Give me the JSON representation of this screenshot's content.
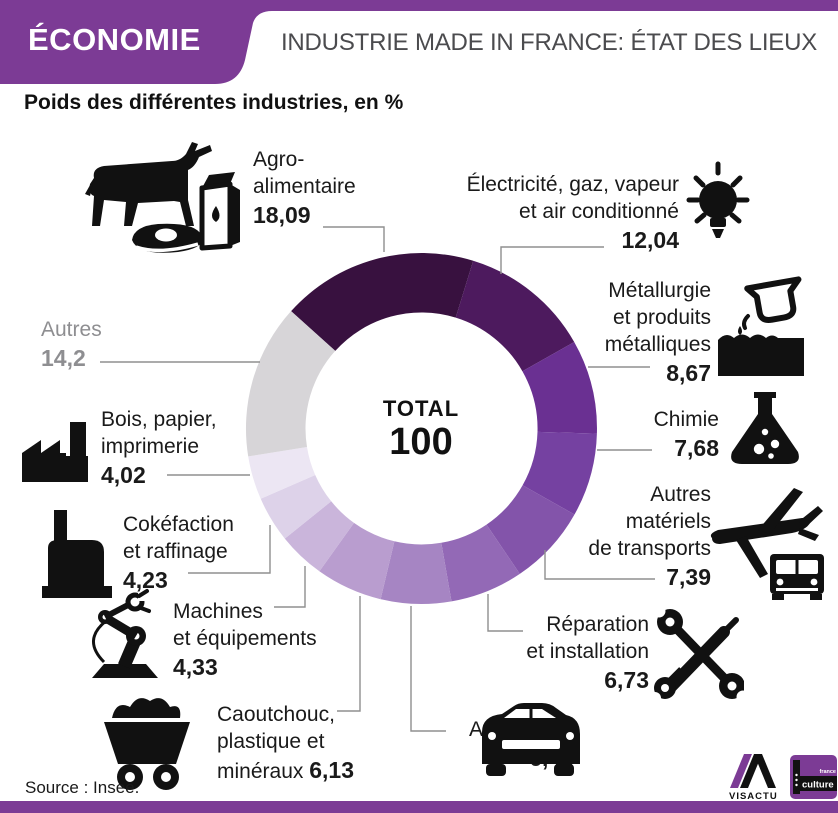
{
  "header": {
    "category": "ÉCONOMIE",
    "title": "INDUSTRIE MADE IN FRANCE: ÉTAT DES LIEUX"
  },
  "subtitle": "Poids des différentes industries, en %",
  "chart_data": {
    "type": "pie",
    "donut": true,
    "title": "Poids des différentes industries, en %",
    "units": "%",
    "total": 100,
    "center": {
      "label": "TOTAL",
      "value": "100"
    },
    "start_angle_deg": -48,
    "legend_position": "around",
    "items": [
      {
        "id": "agro-alimentaire",
        "label": "Agro-alimentaire",
        "lines": [
          "Agro-",
          "alimentaire"
        ],
        "value": 18.09,
        "value_text": "18,09",
        "color": "#38113f",
        "icon": "cow-milk-meat-icon"
      },
      {
        "id": "electricite-gaz",
        "label": "Électricité, gaz, vapeur et air conditionné",
        "lines": [
          "Électricité, gaz, vapeur",
          "et air conditionné"
        ],
        "value": 12.04,
        "value_text": "12,04",
        "color": "#4d1a5e",
        "icon": "lightbulb-icon"
      },
      {
        "id": "metallurgie",
        "label": "Métallurgie et produits métalliques",
        "lines": [
          "Métallurgie",
          "et produits",
          "métalliques"
        ],
        "value": 8.67,
        "value_text": "8,67",
        "color": "#6a3092",
        "icon": "foundry-icon"
      },
      {
        "id": "chimie",
        "label": "Chimie",
        "lines": [
          "Chimie"
        ],
        "value": 7.68,
        "value_text": "7,68",
        "color": "#7541a1",
        "icon": "flask-icon"
      },
      {
        "id": "autres-materiels-transports",
        "label": "Autres matériels de transports",
        "lines": [
          "Autres",
          "matériels",
          "de transports"
        ],
        "value": 7.39,
        "value_text": "7,39",
        "color": "#8354aa",
        "icon": "plane-truck-icon"
      },
      {
        "id": "reparation-installation",
        "label": "Réparation et installation",
        "lines": [
          "Réparation",
          "et installation"
        ],
        "value": 6.73,
        "value_text": "6,73",
        "color": "#9369b6",
        "icon": "tools-icon"
      },
      {
        "id": "automobile",
        "label": "Automobile",
        "lines": [
          "Automobile"
        ],
        "value": 6.48,
        "value_text": "6,48",
        "color": "#a685c3",
        "icon": "car-icon"
      },
      {
        "id": "caoutchouc-plastique-mineraux",
        "label": "Caoutchouc, plastique et minéraux",
        "lines": [
          "Caoutchouc,",
          "plastique et",
          "minéraux"
        ],
        "value": 6.13,
        "value_text": "6,13",
        "color": "#b99dcf",
        "icon": "minecart-icon"
      },
      {
        "id": "machines-equipements",
        "label": "Machines et équipements",
        "lines": [
          "Machines",
          "et équipements"
        ],
        "value": 4.33,
        "value_text": "4,33",
        "color": "#cab5db",
        "icon": "robot-arm-icon"
      },
      {
        "id": "cokefaction-raffinage",
        "label": "Cokéfaction et raffinage",
        "lines": [
          "Cokéfaction",
          "et raffinage"
        ],
        "value": 4.23,
        "value_text": "4,23",
        "color": "#ddd2e9",
        "icon": "refinery-icon"
      },
      {
        "id": "bois-papier-imprimerie",
        "label": "Bois, papier, imprimerie",
        "lines": [
          "Bois, papier,",
          "imprimerie"
        ],
        "value": 4.02,
        "value_text": "4,02",
        "color": "#ece6f3",
        "icon": "factory-icon"
      },
      {
        "id": "autres",
        "label": "Autres",
        "lines": [
          "Autres"
        ],
        "value": 14.2,
        "value_text": "14,2",
        "color": "#d7d5d8",
        "icon": null
      }
    ]
  },
  "source": "Source : Insee.",
  "logos": {
    "visactu": "VISACTU",
    "france_culture": {
      "line1": "france",
      "line2": "culture"
    }
  },
  "colors": {
    "accent": "#7c3b95",
    "title_gray": "#4b4b4e",
    "muted_gray": "#8e8e91"
  }
}
